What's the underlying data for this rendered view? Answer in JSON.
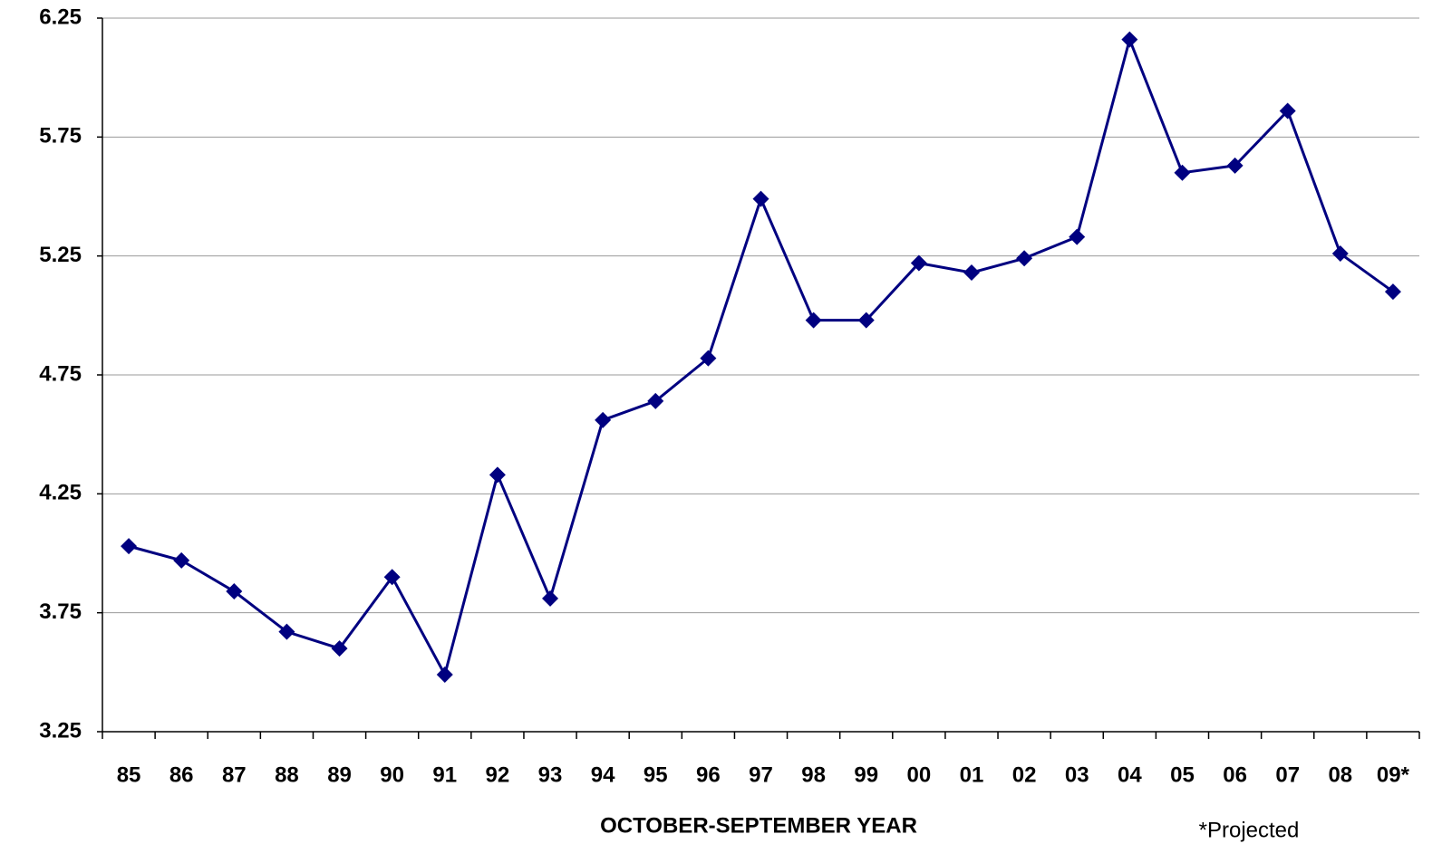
{
  "chart_data": {
    "type": "line",
    "x_label": "OCTOBER-SEPTEMBER YEAR",
    "annotation": "*Projected",
    "categories": [
      "85",
      "86",
      "87",
      "88",
      "89",
      "90",
      "91",
      "92",
      "93",
      "94",
      "95",
      "96",
      "97",
      "98",
      "99",
      "00",
      "01",
      "02",
      "03",
      "04",
      "05",
      "06",
      "07",
      "08",
      "09*"
    ],
    "series": [
      {
        "color": "#000080",
        "values": [
          4.03,
          3.97,
          3.84,
          3.67,
          3.6,
          3.9,
          3.49,
          4.33,
          3.81,
          4.56,
          4.64,
          4.82,
          5.49,
          4.98,
          4.98,
          5.22,
          5.18,
          5.24,
          5.33,
          6.16,
          5.6,
          5.63,
          5.86,
          5.26,
          5.1
        ]
      }
    ],
    "ylim": [
      3.25,
      6.25
    ],
    "yticks": [
      3.25,
      3.75,
      4.25,
      4.75,
      5.25,
      5.75,
      6.25
    ],
    "grid": true
  }
}
